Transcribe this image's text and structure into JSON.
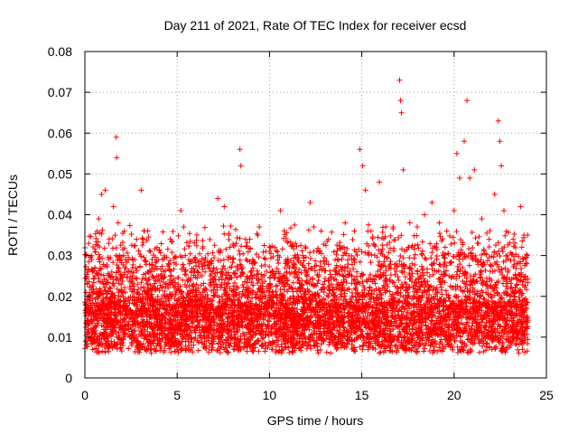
{
  "chart_data": {
    "type": "scatter",
    "title": "Day 211 of 2021, Rate Of TEC Index for receiver ecsd",
    "xlabel": "GPS time / hours",
    "ylabel": "ROTI / TECUs",
    "xlim": [
      0,
      25
    ],
    "ylim": [
      0,
      0.08
    ],
    "x_ticks": [
      0,
      5,
      10,
      15,
      20,
      25
    ],
    "x_tick_labels": [
      "0",
      "5",
      "10",
      "15",
      "20",
      "25"
    ],
    "y_ticks": [
      0,
      0.01,
      0.02,
      0.03,
      0.04,
      0.05,
      0.06,
      0.07,
      0.08
    ],
    "y_tick_labels": [
      "0",
      "0.01",
      "0.02",
      "0.03",
      "0.04",
      "0.05",
      "0.06",
      "0.07",
      "0.08"
    ],
    "grid": true,
    "marker": "+",
    "series": [
      {
        "name": "ROTI",
        "color": "#ff0000",
        "points": [
          [
            0.1,
            0.014
          ],
          [
            0.25,
            0.019
          ],
          [
            0.4,
            0.026
          ],
          [
            0.55,
            0.031
          ],
          [
            0.75,
            0.039
          ],
          [
            0.9,
            0.045
          ],
          [
            1.1,
            0.046
          ],
          [
            1.3,
            0.033
          ],
          [
            1.55,
            0.042
          ],
          [
            1.7,
            0.059
          ],
          [
            1.72,
            0.054
          ],
          [
            1.8,
            0.038
          ],
          [
            2.1,
            0.03
          ],
          [
            2.5,
            0.026
          ],
          [
            2.8,
            0.034
          ],
          [
            3.05,
            0.046
          ],
          [
            3.2,
            0.036
          ],
          [
            3.55,
            0.031
          ],
          [
            3.9,
            0.025
          ],
          [
            4.2,
            0.029
          ],
          [
            4.6,
            0.024
          ],
          [
            5.0,
            0.019
          ],
          [
            5.2,
            0.041
          ],
          [
            5.35,
            0.037
          ],
          [
            5.6,
            0.024
          ],
          [
            6.0,
            0.02
          ],
          [
            6.4,
            0.021
          ],
          [
            6.8,
            0.024
          ],
          [
            7.2,
            0.044
          ],
          [
            7.55,
            0.042
          ],
          [
            7.8,
            0.035
          ],
          [
            8.2,
            0.033
          ],
          [
            8.4,
            0.056
          ],
          [
            8.45,
            0.052
          ],
          [
            8.7,
            0.034
          ],
          [
            9.1,
            0.029
          ],
          [
            9.45,
            0.037
          ],
          [
            9.8,
            0.031
          ],
          [
            10.2,
            0.026
          ],
          [
            10.6,
            0.041
          ],
          [
            11.0,
            0.023
          ],
          [
            11.4,
            0.033
          ],
          [
            11.8,
            0.03
          ],
          [
            12.2,
            0.043
          ],
          [
            12.4,
            0.037
          ],
          [
            12.8,
            0.036
          ],
          [
            13.2,
            0.034
          ],
          [
            13.6,
            0.027
          ],
          [
            14.1,
            0.038
          ],
          [
            14.6,
            0.036
          ],
          [
            14.9,
            0.056
          ],
          [
            15.05,
            0.052
          ],
          [
            15.2,
            0.046
          ],
          [
            15.5,
            0.036
          ],
          [
            15.95,
            0.048
          ],
          [
            16.3,
            0.037
          ],
          [
            16.7,
            0.037
          ],
          [
            17.05,
            0.073
          ],
          [
            17.1,
            0.068
          ],
          [
            17.15,
            0.065
          ],
          [
            17.25,
            0.051
          ],
          [
            17.6,
            0.038
          ],
          [
            18.0,
            0.037
          ],
          [
            18.4,
            0.04
          ],
          [
            18.8,
            0.043
          ],
          [
            19.2,
            0.038
          ],
          [
            19.6,
            0.036
          ],
          [
            20.0,
            0.041
          ],
          [
            20.15,
            0.055
          ],
          [
            20.3,
            0.049
          ],
          [
            20.55,
            0.058
          ],
          [
            20.7,
            0.068
          ],
          [
            20.85,
            0.049
          ],
          [
            21.1,
            0.051
          ],
          [
            21.5,
            0.039
          ],
          [
            21.9,
            0.034
          ],
          [
            22.2,
            0.045
          ],
          [
            22.4,
            0.063
          ],
          [
            22.48,
            0.058
          ],
          [
            22.56,
            0.052
          ],
          [
            22.7,
            0.041
          ],
          [
            23.2,
            0.034
          ],
          [
            23.6,
            0.042
          ],
          [
            23.9,
            0.028
          ]
        ]
      }
    ]
  }
}
